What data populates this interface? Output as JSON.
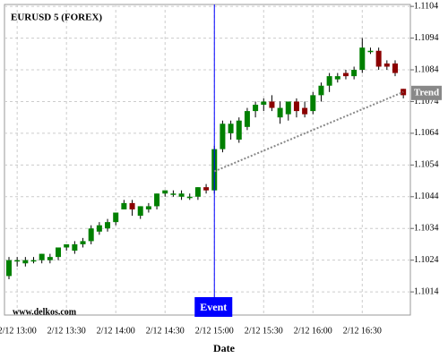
{
  "chart_data": {
    "type": "candlestick",
    "title": "EURUSD 5 (FOREX)",
    "watermark": "www.delkos.com",
    "x_label": "Date",
    "categories": [
      null,
      "2/12 13:00",
      null,
      null,
      null,
      null,
      null,
      "2/12 13:30",
      null,
      null,
      null,
      null,
      null,
      "2/12 14:00",
      null,
      null,
      null,
      null,
      null,
      "2/12 14:30",
      null,
      null,
      null,
      null,
      null,
      "2/12 15:00",
      null,
      null,
      null,
      null,
      null,
      "2/12 15:30",
      null,
      null,
      null,
      null,
      null,
      "2/12 16:00",
      null,
      null,
      null,
      null,
      null,
      "2/12 16:30",
      null,
      null,
      null,
      null,
      null
    ],
    "open": [
      1.1019,
      1.1024,
      1.1023,
      1.1024,
      1.1024,
      1.1024,
      1.1025,
      1.1028,
      1.1027,
      1.1029,
      1.103,
      1.1033,
      1.1034,
      1.1036,
      1.104,
      1.1042,
      1.1038,
      1.104,
      1.1041,
      1.1045,
      1.1045,
      1.1044,
      1.1044,
      1.1044,
      1.1047,
      1.1046,
      1.1059,
      1.1064,
      1.1062,
      1.1066,
      1.1071,
      1.1073,
      1.1074,
      1.1069,
      1.107,
      1.1074,
      1.1072,
      1.1071,
      1.1076,
      1.1079,
      1.1081,
      1.1083,
      1.1082,
      1.1084,
      1.109,
      1.109,
      1.1086,
      1.1086,
      1.1078
    ],
    "high": [
      1.1025,
      1.1025,
      1.1025,
      1.1025,
      1.1026,
      1.1026,
      1.1028,
      1.1029,
      1.103,
      1.1031,
      1.1035,
      1.1036,
      1.1037,
      1.1039,
      1.1043,
      1.1043,
      1.1041,
      1.1042,
      1.1045,
      1.1046,
      1.1046,
      1.1046,
      1.1045,
      1.1047,
      1.1048,
      1.106,
      1.1068,
      1.1068,
      1.1069,
      1.1072,
      1.1074,
      1.1075,
      1.1076,
      1.1074,
      1.1074,
      1.1075,
      1.1074,
      1.1077,
      1.108,
      1.1083,
      1.1083,
      1.1084,
      1.1085,
      1.1094,
      1.1091,
      1.1091,
      1.1087,
      1.1087,
      1.1078
    ],
    "low": [
      1.1018,
      1.1022,
      1.1022,
      1.1023,
      1.1023,
      1.1023,
      1.1024,
      1.1027,
      1.1026,
      1.1028,
      1.1029,
      1.1032,
      1.1033,
      1.1035,
      1.104,
      1.1038,
      1.1037,
      1.1039,
      1.104,
      1.1044,
      1.1044,
      1.1043,
      1.1043,
      1.1043,
      1.1045,
      1.1045,
      1.1058,
      1.1062,
      1.1061,
      1.1065,
      1.1069,
      1.1071,
      1.1071,
      1.1067,
      1.1068,
      1.1069,
      1.1069,
      1.107,
      1.1074,
      1.1077,
      1.108,
      1.1081,
      1.1081,
      1.1083,
      1.1089,
      1.1084,
      1.1084,
      1.1082,
      1.1075
    ],
    "close": [
      1.1024,
      1.1024,
      1.1024,
      1.1024,
      1.1026,
      1.1025,
      1.1028,
      1.1029,
      1.1029,
      1.103,
      1.1034,
      1.1035,
      1.1036,
      1.1039,
      1.1042,
      1.104,
      1.1041,
      1.1041,
      1.1045,
      1.1046,
      1.1045,
      1.1045,
      1.1044,
      1.1047,
      1.1046,
      1.1059,
      1.1067,
      1.1067,
      1.1068,
      1.1071,
      1.1073,
      1.1074,
      1.1072,
      1.1072,
      1.1074,
      1.1071,
      1.107,
      1.1076,
      1.1079,
      1.1082,
      1.1082,
      1.1082,
      1.1084,
      1.1091,
      1.109,
      1.1085,
      1.1085,
      1.1083,
      1.1076
    ],
    "up_color": "#008000",
    "down_color": "#8b0000",
    "trend": {
      "name": "Trend",
      "color": "#888888",
      "values": [
        null,
        null,
        null,
        null,
        null,
        null,
        null,
        null,
        null,
        null,
        null,
        null,
        null,
        null,
        null,
        null,
        null,
        null,
        null,
        null,
        null,
        null,
        null,
        null,
        null,
        1.1052,
        null,
        null,
        null,
        null,
        null,
        null,
        null,
        null,
        null,
        null,
        null,
        null,
        null,
        null,
        null,
        null,
        null,
        null,
        null,
        null,
        null,
        null,
        1.1077
      ]
    },
    "event": {
      "label": "Event",
      "at": "2/12 15:00",
      "color": "#0000ff"
    },
    "ylim": [
      1.10067,
      1.11046
    ],
    "yticks": [
      1.1014,
      1.1024,
      1.1034,
      1.1044,
      1.1054,
      1.1064,
      1.1074,
      1.1084,
      1.1094,
      1.1104
    ],
    "grid": true
  }
}
